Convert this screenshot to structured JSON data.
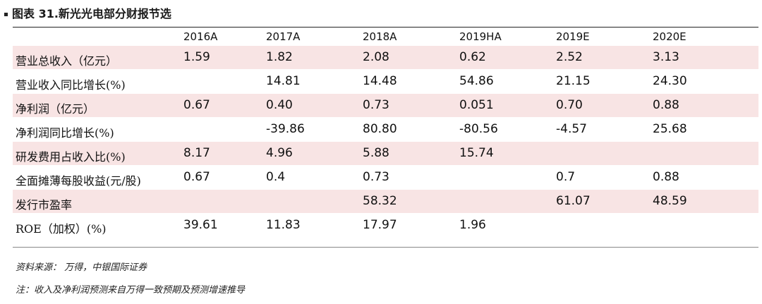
{
  "header": {
    "title": "图表 31.新光光电部分财报节选"
  },
  "table": {
    "columns": [
      "2016A",
      "2017A",
      "2018A",
      "2019HA",
      "2019E",
      "2020E"
    ],
    "rows": [
      {
        "label": "营业总收入（亿元）",
        "cells": [
          "1.59",
          "1.82",
          "2.08",
          "0.62",
          "2.52",
          "3.13"
        ]
      },
      {
        "label": "营业收入同比增长(%)",
        "cells": [
          null,
          "14.81",
          "14.48",
          "54.86",
          "21.15",
          "24.30"
        ]
      },
      {
        "label": "净利润（亿元）",
        "cells": [
          "0.67",
          "0.40",
          "0.73",
          "0.051",
          "0.70",
          "0.88"
        ]
      },
      {
        "label": "净利润同比增长(%)",
        "cells": [
          null,
          "-39.86",
          "80.80",
          "-80.56",
          "-4.57",
          "25.68"
        ]
      },
      {
        "label": "研发费用占收入比(%)",
        "cells": [
          "8.17",
          "4.96",
          "5.88",
          "15.74",
          null,
          null
        ]
      },
      {
        "label": "全面摊薄每股收益(元/股)",
        "cells": [
          "0.67",
          "0.4",
          "0.73",
          null,
          "0.7",
          "0.88"
        ]
      },
      {
        "label": "发行市盈率",
        "cells": [
          null,
          null,
          "58.32",
          null,
          "61.07",
          "48.59"
        ]
      },
      {
        "label": "ROE（加权）(%)",
        "cells": [
          "39.61",
          "11.83",
          "17.97",
          "1.96",
          null,
          null
        ]
      }
    ]
  },
  "footer": {
    "source": "资料来源： 万得，中银国际证券",
    "note": "注：收入及净利润预测来自万得一致预期及预测增速推导"
  }
}
